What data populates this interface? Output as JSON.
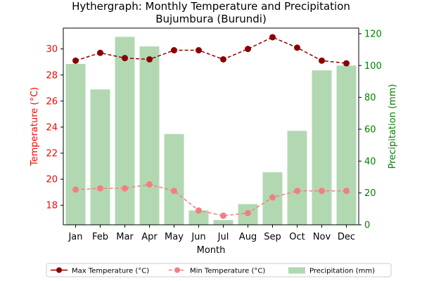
{
  "chart_data": {
    "type": "bar+line",
    "title": "Hythergraph: Monthly Temperature and Precipitation",
    "subtitle": "Bujumbura (Burundi)",
    "xlabel": "Month",
    "ylabel_left": "Temperature (°C)",
    "ylabel_right": "Precipitation (mm)",
    "categories": [
      "Jan",
      "Feb",
      "Mar",
      "Apr",
      "May",
      "Jun",
      "Jul",
      "Aug",
      "Sep",
      "Oct",
      "Nov",
      "Dec"
    ],
    "y_left_range": [
      16.5,
      31.6
    ],
    "y_left_ticks": [
      18,
      20,
      22,
      24,
      26,
      28,
      30
    ],
    "y_right_range": [
      0,
      123.5
    ],
    "y_right_ticks": [
      0,
      20,
      40,
      60,
      80,
      100,
      120
    ],
    "grid": false,
    "legend_position": "bottom",
    "series": [
      {
        "name": "Max Temperature (°C)",
        "kind": "line",
        "axis": "left",
        "color": "#8b0000",
        "values": [
          29.1,
          29.7,
          29.3,
          29.2,
          29.9,
          29.9,
          29.2,
          30.0,
          30.9,
          30.1,
          29.1,
          28.9
        ]
      },
      {
        "name": "Min Temperature (°C)",
        "kind": "line",
        "axis": "left",
        "color": "#f08080",
        "values": [
          19.2,
          19.3,
          19.3,
          19.6,
          19.1,
          17.6,
          17.2,
          17.4,
          18.6,
          19.1,
          19.1,
          19.1
        ]
      },
      {
        "name": "Precipitation (mm)",
        "kind": "bar",
        "axis": "right",
        "color": "#b2d8b2",
        "values": [
          101,
          85,
          118,
          112,
          57,
          9,
          3,
          13,
          33,
          59,
          97,
          100
        ]
      }
    ]
  }
}
